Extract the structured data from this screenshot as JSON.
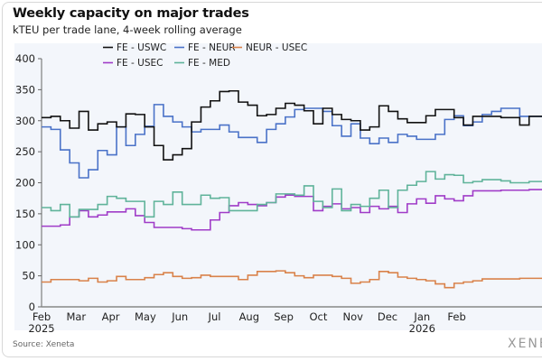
{
  "chart_data": {
    "type": "line",
    "title": "Weekly capacity on major trades",
    "subtitle": "kTEU per trade lane, 4-week rolling average",
    "xlabel": "",
    "ylabel": "",
    "ylim": [
      0,
      400
    ],
    "yticks": [
      0,
      50,
      100,
      150,
      200,
      250,
      300,
      350,
      400
    ],
    "x_unit": "months since Feb 2025",
    "x_start": 0,
    "x_step": 0.271,
    "xlim": [
      0,
      14.46
    ],
    "xticks": [
      {
        "at": 0,
        "label": "Feb",
        "sub": "2025"
      },
      {
        "at": 1,
        "label": "Mar",
        "sub": ""
      },
      {
        "at": 2,
        "label": "Apr",
        "sub": ""
      },
      {
        "at": 3,
        "label": "May",
        "sub": ""
      },
      {
        "at": 4,
        "label": "Jun",
        "sub": ""
      },
      {
        "at": 5,
        "label": "Jul",
        "sub": ""
      },
      {
        "at": 6,
        "label": "Aug",
        "sub": ""
      },
      {
        "at": 7,
        "label": "Sep",
        "sub": ""
      },
      {
        "at": 8,
        "label": "Oct",
        "sub": ""
      },
      {
        "at": 9,
        "label": "Nov",
        "sub": ""
      },
      {
        "at": 10,
        "label": "Dec",
        "sub": ""
      },
      {
        "at": 11,
        "label": "Jan",
        "sub": "2026"
      },
      {
        "at": 12,
        "label": "Feb",
        "sub": ""
      }
    ],
    "legend_position": "top",
    "series": [
      {
        "name": "FE - USWC",
        "color": "#111111",
        "values": [
          305,
          307,
          300,
          288,
          315,
          285,
          295,
          298,
          290,
          311,
          310,
          290,
          260,
          237,
          245,
          255,
          298,
          322,
          332,
          347,
          348,
          330,
          325,
          308,
          310,
          320,
          328,
          325,
          316,
          295,
          320,
          310,
          302,
          300,
          285,
          290,
          324,
          315,
          303,
          297,
          297,
          308,
          318,
          318,
          305,
          293,
          307,
          307,
          307,
          305,
          305,
          293,
          307,
          307
        ]
      },
      {
        "name": "FE - NEUR",
        "color": "#4a72c8",
        "values": [
          290,
          286,
          253,
          232,
          208,
          221,
          252,
          245,
          290,
          260,
          278,
          291,
          326,
          307,
          298,
          290,
          282,
          286,
          286,
          293,
          282,
          273,
          273,
          265,
          286,
          295,
          306,
          318,
          320,
          320,
          315,
          292,
          275,
          295,
          272,
          263,
          272,
          265,
          278,
          275,
          270,
          270,
          278,
          302,
          308,
          292,
          298,
          310,
          315,
          320,
          320,
          307,
          307,
          307
        ]
      },
      {
        "name": "NEUR - USEC",
        "color": "#d9824a",
        "values": [
          40,
          44,
          44,
          44,
          42,
          46,
          40,
          42,
          49,
          44,
          44,
          47,
          52,
          55,
          49,
          46,
          47,
          51,
          49,
          49,
          49,
          44,
          51,
          57,
          57,
          58,
          55,
          50,
          47,
          51,
          51,
          49,
          46,
          38,
          40,
          44,
          57,
          55,
          48,
          46,
          44,
          42,
          37,
          31,
          38,
          40,
          42,
          45,
          45,
          45,
          45,
          46,
          46,
          46
        ]
      },
      {
        "name": "FE - USEC",
        "color": "#a03cc8",
        "values": [
          130,
          130,
          132,
          145,
          155,
          145,
          148,
          153,
          153,
          158,
          147,
          136,
          128,
          128,
          128,
          126,
          124,
          124,
          140,
          152,
          163,
          168,
          165,
          163,
          168,
          177,
          180,
          178,
          178,
          155,
          162,
          166,
          158,
          160,
          152,
          162,
          158,
          162,
          152,
          166,
          174,
          167,
          179,
          174,
          171,
          179,
          187,
          187,
          187,
          188,
          188,
          188,
          189,
          189
        ]
      },
      {
        "name": "FE - MED",
        "color": "#5fb39a",
        "values": [
          160,
          155,
          165,
          145,
          157,
          157,
          165,
          178,
          175,
          170,
          170,
          145,
          170,
          165,
          185,
          165,
          165,
          180,
          175,
          176,
          155,
          155,
          155,
          165,
          168,
          182,
          182,
          180,
          195,
          170,
          160,
          190,
          155,
          165,
          162,
          175,
          188,
          160,
          188,
          196,
          202,
          218,
          206,
          213,
          212,
          200,
          202,
          205,
          205,
          203,
          200,
          200,
          202,
          202
        ]
      }
    ]
  },
  "footer": {
    "source": "Source: Xeneta",
    "logo": "XENETA"
  }
}
